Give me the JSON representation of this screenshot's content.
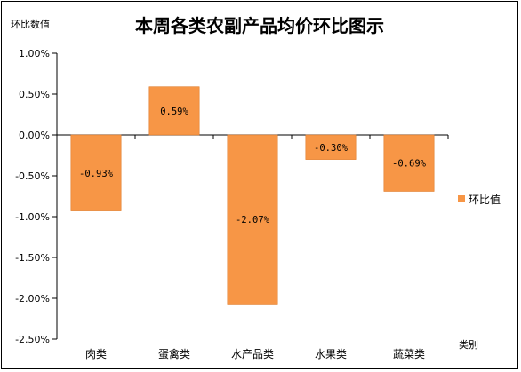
{
  "chart_data": {
    "type": "bar",
    "title": "本周各类农副产品均价环比图示",
    "ylabel": "环比数值",
    "xlabel": "类别",
    "categories": [
      "肉类",
      "蛋禽类",
      "水产品类",
      "水果类",
      "蔬菜类"
    ],
    "series": [
      {
        "name": "环比值",
        "values": [
          -0.93,
          0.59,
          -2.07,
          -0.3,
          -0.69
        ]
      }
    ],
    "data_labels": [
      "-0.93%",
      "0.59%",
      "-2.07%",
      "-0.30%",
      "-0.69%"
    ],
    "ylim": [
      -2.5,
      1.0
    ],
    "yticks": [
      1.0,
      0.5,
      0.0,
      -0.5,
      -1.0,
      -1.5,
      -2.0,
      -2.5
    ],
    "ytick_labels": [
      "1.00%",
      "0.50%",
      "0.00%",
      "-0.50%",
      "-1.00%",
      "-1.50%",
      "-2.00%",
      "-2.50%"
    ],
    "grid": false,
    "legend_position": "right",
    "colors": {
      "bar": "#F79646",
      "bar_stroke": "#E07B28",
      "axis": "#000000",
      "text": "#000000"
    }
  }
}
